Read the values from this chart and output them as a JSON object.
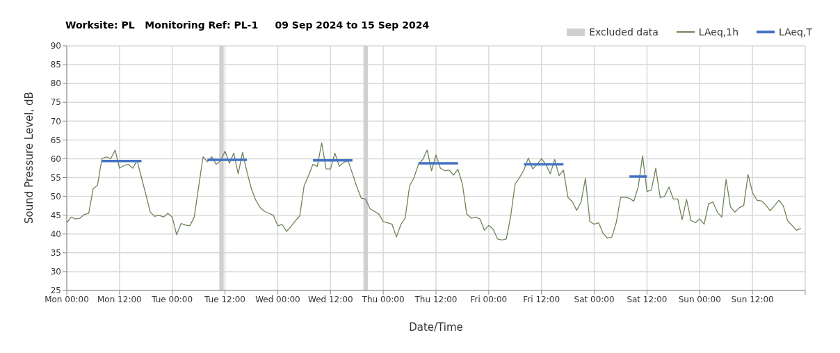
{
  "chart_data": {
    "type": "line",
    "title": "Worksite: PL   Monitoring Ref: PL-1     09 Sep 2024 to 15 Sep 2024",
    "xlabel": "Date/Time",
    "ylabel": "Sound Pressure Level, dB",
    "x": [
      "2024-09-09T00:00",
      "2024-09-09T01:00",
      "2024-09-09T02:00",
      "2024-09-09T03:00",
      "2024-09-09T04:00",
      "2024-09-09T05:00",
      "2024-09-09T06:00",
      "2024-09-09T07:00",
      "2024-09-09T08:00",
      "2024-09-09T09:00",
      "2024-09-09T10:00",
      "2024-09-09T11:00",
      "2024-09-09T12:00",
      "2024-09-09T13:00",
      "2024-09-09T14:00",
      "2024-09-09T15:00",
      "2024-09-09T16:00",
      "2024-09-09T17:00",
      "2024-09-09T18:00",
      "2024-09-09T19:00",
      "2024-09-09T20:00",
      "2024-09-09T21:00",
      "2024-09-09T22:00",
      "2024-09-09T23:00",
      "2024-09-10T00:00",
      "2024-09-10T01:00",
      "2024-09-10T02:00",
      "2024-09-10T03:00",
      "2024-09-10T04:00",
      "2024-09-10T05:00",
      "2024-09-10T06:00",
      "2024-09-10T07:00",
      "2024-09-10T08:00",
      "2024-09-10T09:00",
      "2024-09-10T10:00",
      "2024-09-10T11:00",
      "2024-09-10T12:00",
      "2024-09-10T13:00",
      "2024-09-10T14:00",
      "2024-09-10T15:00",
      "2024-09-10T16:00",
      "2024-09-10T17:00",
      "2024-09-10T18:00",
      "2024-09-10T19:00",
      "2024-09-10T20:00",
      "2024-09-10T21:00",
      "2024-09-10T22:00",
      "2024-09-10T23:00",
      "2024-09-11T00:00",
      "2024-09-11T01:00",
      "2024-09-11T02:00",
      "2024-09-11T03:00",
      "2024-09-11T04:00",
      "2024-09-11T05:00",
      "2024-09-11T06:00",
      "2024-09-11T07:00",
      "2024-09-11T08:00",
      "2024-09-11T09:00",
      "2024-09-11T10:00",
      "2024-09-11T11:00",
      "2024-09-11T12:00",
      "2024-09-11T13:00",
      "2024-09-11T14:00",
      "2024-09-11T15:00",
      "2024-09-11T16:00",
      "2024-09-11T17:00",
      "2024-09-11T18:00",
      "2024-09-11T19:00",
      "2024-09-11T20:00",
      "2024-09-11T21:00",
      "2024-09-11T22:00",
      "2024-09-11T23:00",
      "2024-09-12T00:00",
      "2024-09-12T01:00",
      "2024-09-12T02:00",
      "2024-09-12T03:00",
      "2024-09-12T04:00",
      "2024-09-12T05:00",
      "2024-09-12T06:00",
      "2024-09-12T07:00",
      "2024-09-12T08:00",
      "2024-09-12T09:00",
      "2024-09-12T10:00",
      "2024-09-12T11:00",
      "2024-09-12T12:00",
      "2024-09-12T13:00",
      "2024-09-12T14:00",
      "2024-09-12T15:00",
      "2024-09-12T16:00",
      "2024-09-12T17:00",
      "2024-09-12T18:00",
      "2024-09-12T19:00",
      "2024-09-12T20:00",
      "2024-09-12T21:00",
      "2024-09-12T22:00",
      "2024-09-12T23:00",
      "2024-09-13T00:00",
      "2024-09-13T01:00",
      "2024-09-13T02:00",
      "2024-09-13T03:00",
      "2024-09-13T04:00",
      "2024-09-13T05:00",
      "2024-09-13T06:00",
      "2024-09-13T07:00",
      "2024-09-13T08:00",
      "2024-09-13T09:00",
      "2024-09-13T10:00",
      "2024-09-13T11:00",
      "2024-09-13T12:00",
      "2024-09-13T13:00",
      "2024-09-13T14:00",
      "2024-09-13T15:00",
      "2024-09-13T16:00",
      "2024-09-13T17:00",
      "2024-09-13T18:00",
      "2024-09-13T19:00",
      "2024-09-13T20:00",
      "2024-09-13T21:00",
      "2024-09-13T22:00",
      "2024-09-13T23:00",
      "2024-09-14T00:00",
      "2024-09-14T01:00",
      "2024-09-14T02:00",
      "2024-09-14T03:00",
      "2024-09-14T04:00",
      "2024-09-14T05:00",
      "2024-09-14T06:00",
      "2024-09-14T07:00",
      "2024-09-14T08:00",
      "2024-09-14T09:00",
      "2024-09-14T10:00",
      "2024-09-14T11:00",
      "2024-09-14T12:00",
      "2024-09-14T13:00",
      "2024-09-14T14:00",
      "2024-09-14T15:00",
      "2024-09-14T16:00",
      "2024-09-14T17:00",
      "2024-09-14T18:00",
      "2024-09-14T19:00",
      "2024-09-14T20:00",
      "2024-09-14T21:00",
      "2024-09-14T22:00",
      "2024-09-14T23:00",
      "2024-09-15T00:00",
      "2024-09-15T01:00",
      "2024-09-15T02:00",
      "2024-09-15T03:00",
      "2024-09-15T04:00",
      "2024-09-15T05:00",
      "2024-09-15T06:00",
      "2024-09-15T07:00",
      "2024-09-15T08:00",
      "2024-09-15T09:00",
      "2024-09-15T10:00",
      "2024-09-15T11:00",
      "2024-09-15T12:00",
      "2024-09-15T13:00",
      "2024-09-15T14:00",
      "2024-09-15T15:00",
      "2024-09-15T16:00",
      "2024-09-15T17:00",
      "2024-09-15T18:00",
      "2024-09-15T19:00",
      "2024-09-15T20:00",
      "2024-09-15T21:00",
      "2024-09-15T22:00",
      "2024-09-15T23:00"
    ],
    "series": [
      {
        "name": "LAeq,1h",
        "color": "#6e8458",
        "values": [
          43,
          44.5,
          44,
          44.2,
          45.2,
          45.5,
          52,
          53,
          60,
          60.5,
          60,
          62.3,
          57.5,
          58.2,
          58.5,
          57.5,
          59.5,
          55,
          50.5,
          45.8,
          44.7,
          45,
          44.5,
          45.5,
          44.5,
          39.8,
          42.8,
          42.4,
          42.2,
          44.5,
          52.5,
          60.5,
          59.2,
          60.5,
          58.5,
          59.5,
          62,
          58.8,
          61.5,
          56,
          61.7,
          56.5,
          52,
          49,
          47,
          46,
          45.5,
          45,
          42.2,
          42.5,
          40.7,
          42,
          43.5,
          44.8,
          52.8,
          55.5,
          58.5,
          58,
          64.2,
          57.3,
          57.3,
          61.5,
          58,
          59,
          59.5,
          56,
          52.5,
          49.5,
          49.3,
          46.7,
          46,
          45.3,
          43.3,
          43,
          42.6,
          39.2,
          42.5,
          44.3,
          52.8,
          55,
          58.5,
          59.8,
          62.3,
          56.8,
          61,
          57.5,
          56.8,
          57,
          55.7,
          57.2,
          53.3,
          45.3,
          44.2,
          44.5,
          44,
          41,
          42.3,
          41.3,
          38.7,
          38.4,
          38.7,
          44.8,
          53.3,
          55,
          57,
          60.2,
          57.3,
          58.5,
          60,
          58.5,
          56,
          59.8,
          55.5,
          57,
          49.8,
          48.6,
          46.3,
          48.5,
          54.8,
          43.3,
          42.6,
          43,
          40.2,
          38.9,
          39.2,
          43,
          49.7,
          49.8,
          49.5,
          48.7,
          52.5,
          60.8,
          51.3,
          51.7,
          57.5,
          49.7,
          50,
          52.5,
          49.3,
          49.3,
          43.8,
          49.2,
          43.6,
          43,
          44,
          42.6,
          48,
          48.5,
          45.8,
          44.5,
          54.5,
          47.2,
          45.8,
          47,
          47.5,
          55.8,
          51,
          49,
          48.8,
          47.8,
          46.2,
          47.5,
          49,
          47.5,
          43.5,
          42.3,
          41,
          41.5
        ]
      },
      {
        "name": "LAeq,T",
        "color": "#4472c4",
        "values": [
          null,
          null,
          null,
          null,
          null,
          null,
          null,
          null,
          59.4,
          59.4,
          59.4,
          59.4,
          59.4,
          59.4,
          59.4,
          59.4,
          59.4,
          59.4,
          null,
          null,
          null,
          null,
          null,
          null,
          null,
          null,
          null,
          null,
          null,
          null,
          null,
          null,
          59.7,
          59.7,
          59.7,
          59.7,
          59.7,
          59.7,
          59.7,
          59.7,
          59.7,
          59.7,
          null,
          null,
          null,
          null,
          null,
          null,
          null,
          null,
          null,
          null,
          null,
          null,
          null,
          null,
          59.6,
          59.6,
          59.6,
          59.6,
          59.6,
          59.6,
          59.6,
          59.6,
          59.6,
          59.6,
          null,
          null,
          null,
          null,
          null,
          null,
          null,
          null,
          null,
          null,
          null,
          null,
          null,
          null,
          58.8,
          58.8,
          58.8,
          58.8,
          58.8,
          58.8,
          58.8,
          58.8,
          58.8,
          58.8,
          null,
          null,
          null,
          null,
          null,
          null,
          null,
          null,
          null,
          null,
          null,
          null,
          null,
          null,
          58.5,
          58.5,
          58.5,
          58.5,
          58.5,
          58.5,
          58.5,
          58.5,
          58.5,
          58.5,
          null,
          null,
          null,
          null,
          null,
          null,
          null,
          null,
          null,
          null,
          null,
          null,
          null,
          null,
          55.3,
          55.3,
          55.3,
          55.3,
          55.3,
          null,
          null,
          null,
          null,
          null,
          null,
          null,
          null,
          null,
          null,
          null,
          null,
          null,
          null,
          null,
          null,
          null,
          null,
          null,
          null,
          null,
          null,
          null,
          null,
          null,
          null,
          null,
          null,
          null,
          null,
          null,
          null,
          null,
          null,
          null
        ]
      }
    ],
    "bands": [
      {
        "axis": "x",
        "from": "2024-09-10T10:42",
        "to": "2024-09-10T11:42",
        "label": "Excluded data",
        "color": "#d0d0d0"
      },
      {
        "axis": "x",
        "from": "2024-09-11T19:30",
        "to": "2024-09-11T20:30",
        "color": "#d0d0d0"
      }
    ],
    "xlim": [
      "2024-09-09T00:00",
      "2024-09-16T00:00"
    ],
    "xticks": [
      {
        "value": "2024-09-09T00:00",
        "label": "Mon 00:00"
      },
      {
        "value": "2024-09-09T12:00",
        "label": "Mon 12:00"
      },
      {
        "value": "2024-09-10T00:00",
        "label": "Tue 00:00"
      },
      {
        "value": "2024-09-10T12:00",
        "label": "Tue 12:00"
      },
      {
        "value": "2024-09-11T00:00",
        "label": "Wed 00:00"
      },
      {
        "value": "2024-09-11T12:00",
        "label": "Wed 12:00"
      },
      {
        "value": "2024-09-12T00:00",
        "label": "Thu 00:00"
      },
      {
        "value": "2024-09-12T12:00",
        "label": "Thu 12:00"
      },
      {
        "value": "2024-09-13T00:00",
        "label": "Fri 00:00"
      },
      {
        "value": "2024-09-13T12:00",
        "label": "Fri 12:00"
      },
      {
        "value": "2024-09-14T00:00",
        "label": "Sat 00:00"
      },
      {
        "value": "2024-09-14T12:00",
        "label": "Sat 12:00"
      },
      {
        "value": "2024-09-15T00:00",
        "label": "Sun 00:00"
      },
      {
        "value": "2024-09-15T12:00",
        "label": "Sun 12:00"
      },
      {
        "value": "2024-09-16T00:00",
        "label": null
      }
    ],
    "ylim": [
      25,
      90
    ],
    "yticks": [
      25,
      30,
      35,
      40,
      45,
      50,
      55,
      60,
      65,
      70,
      75,
      80,
      85,
      90
    ],
    "grid": true,
    "legend": "top right",
    "marker": "none",
    "line_style": "solid"
  }
}
